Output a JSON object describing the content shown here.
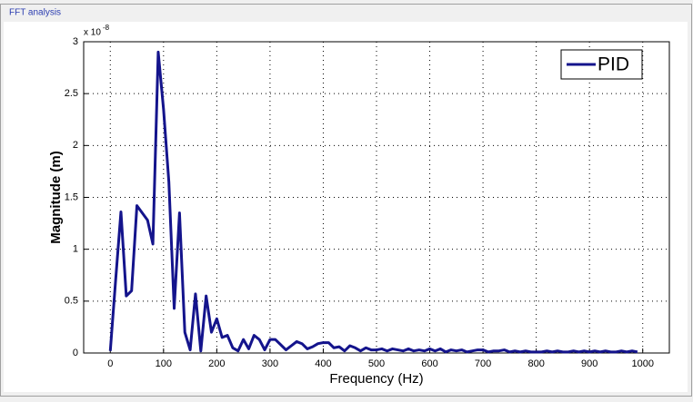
{
  "window_title": "FFT analysis",
  "chart_data": {
    "type": "line",
    "xlabel": "Frequency (Hz)",
    "ylabel": "Magnitude (m)",
    "y_exponent": {
      "base": "x 10",
      "power": "-8"
    },
    "x": [
      0,
      10,
      20,
      30,
      40,
      50,
      60,
      70,
      80,
      90,
      100,
      110,
      120,
      130,
      140,
      150,
      160,
      170,
      180,
      190,
      200,
      210,
      220,
      230,
      240,
      250,
      260,
      270,
      280,
      290,
      300,
      310,
      320,
      330,
      340,
      350,
      360,
      370,
      380,
      390,
      400,
      410,
      420,
      430,
      440,
      450,
      460,
      470,
      480,
      490,
      500,
      510,
      520,
      530,
      540,
      550,
      560,
      570,
      580,
      590,
      600,
      610,
      620,
      630,
      640,
      650,
      660,
      670,
      680,
      690,
      700,
      710,
      720,
      730,
      740,
      750,
      760,
      770,
      780,
      790,
      800,
      810,
      820,
      830,
      840,
      850,
      860,
      870,
      880,
      890,
      900,
      910,
      920,
      930,
      940,
      950,
      960,
      970,
      980,
      990
    ],
    "series": [
      {
        "name": "PID",
        "color": "#14148c",
        "values": [
          0.02,
          0.7,
          1.36,
          0.55,
          0.6,
          1.42,
          1.35,
          1.28,
          1.05,
          2.9,
          2.35,
          1.65,
          0.43,
          1.35,
          0.2,
          0.03,
          0.57,
          0.02,
          0.55,
          0.2,
          0.33,
          0.15,
          0.17,
          0.05,
          0.02,
          0.13,
          0.04,
          0.17,
          0.13,
          0.03,
          0.13,
          0.13,
          0.08,
          0.03,
          0.07,
          0.11,
          0.09,
          0.04,
          0.06,
          0.09,
          0.1,
          0.1,
          0.05,
          0.06,
          0.02,
          0.07,
          0.05,
          0.02,
          0.05,
          0.03,
          0.03,
          0.04,
          0.02,
          0.04,
          0.03,
          0.02,
          0.04,
          0.02,
          0.03,
          0.02,
          0.04,
          0.02,
          0.04,
          0.01,
          0.03,
          0.02,
          0.03,
          0.01,
          0.02,
          0.03,
          0.03,
          0.01,
          0.02,
          0.02,
          0.03,
          0.01,
          0.02,
          0.01,
          0.02,
          0.01,
          0.01,
          0.01,
          0.02,
          0.01,
          0.02,
          0.01,
          0.01,
          0.02,
          0.01,
          0.02,
          0.01,
          0.02,
          0.01,
          0.02,
          0.01,
          0.01,
          0.02,
          0.01,
          0.02,
          0.01
        ]
      }
    ],
    "xlim": [
      -50,
      1050
    ],
    "ylim": [
      0,
      3
    ],
    "xticks": [
      0,
      100,
      200,
      300,
      400,
      500,
      600,
      700,
      800,
      900,
      1000
    ],
    "yticks": [
      0,
      0.5,
      1,
      1.5,
      2,
      2.5,
      3
    ],
    "grid": true,
    "legend": "upper-right"
  }
}
